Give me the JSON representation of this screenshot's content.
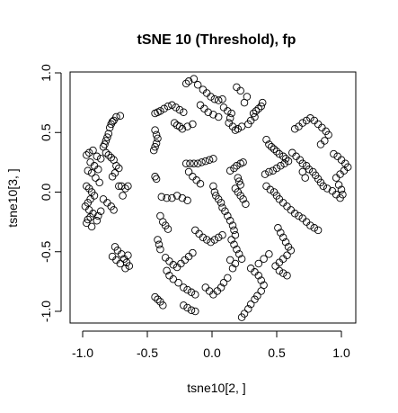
{
  "chart_data": {
    "type": "scatter",
    "title": "tSNE 10 (Threshold), fp",
    "xlabel": "tsne10[2, ]",
    "ylabel": "tsne10[3, ]",
    "xlim": [
      -1.1,
      1.1
    ],
    "ylim": [
      -1.1,
      1.1
    ],
    "xticks": [
      -1.0,
      -0.5,
      0.0,
      0.5,
      1.0
    ],
    "yticks": [
      -1.0,
      -0.5,
      0.0,
      0.5,
      1.0
    ],
    "xtick_labels": [
      "-1.0",
      "-0.5",
      "0.0",
      "0.5",
      "1.0"
    ],
    "ytick_labels": [
      "-1.0",
      "-0.5",
      "0.0",
      "0.5",
      "1.0"
    ],
    "grid": false,
    "marker": "open-circle",
    "marker_color": "#000000",
    "points": [
      [
        -0.97,
        0.31
      ],
      [
        -0.95,
        0.33
      ],
      [
        -0.92,
        0.35
      ],
      [
        -0.89,
        0.3
      ],
      [
        -0.86,
        0.28
      ],
      [
        -0.94,
        0.25
      ],
      [
        -0.91,
        0.22
      ],
      [
        -0.88,
        0.19
      ],
      [
        -0.96,
        0.18
      ],
      [
        -0.93,
        0.16
      ],
      [
        -0.9,
        0.12
      ],
      [
        -0.87,
        0.08
      ],
      [
        -0.84,
        0.38
      ],
      [
        -0.82,
        0.43
      ],
      [
        -0.8,
        0.49
      ],
      [
        -0.79,
        0.54
      ],
      [
        -0.78,
        0.57
      ],
      [
        -0.77,
        0.59
      ],
      [
        -0.76,
        0.6
      ],
      [
        -0.74,
        0.63
      ],
      [
        -0.71,
        0.64
      ],
      [
        -0.81,
        0.46
      ],
      [
        -0.83,
        0.4
      ],
      [
        -0.82,
        0.33
      ],
      [
        -0.8,
        0.31
      ],
      [
        -0.78,
        0.29
      ],
      [
        -0.76,
        0.27
      ],
      [
        -0.74,
        0.22
      ],
      [
        -0.72,
        0.2
      ],
      [
        -0.75,
        0.16
      ],
      [
        -0.77,
        0.13
      ],
      [
        -0.97,
        0.05
      ],
      [
        -0.95,
        0.03
      ],
      [
        -0.93,
        0.0
      ],
      [
        -0.91,
        -0.03
      ],
      [
        -0.94,
        -0.06
      ],
      [
        -0.96,
        -0.09
      ],
      [
        -0.98,
        -0.12
      ],
      [
        -0.95,
        -0.15
      ],
      [
        -0.92,
        -0.18
      ],
      [
        -0.94,
        -0.21
      ],
      [
        -0.96,
        -0.23
      ],
      [
        -0.97,
        -0.26
      ],
      [
        -0.93,
        -0.29
      ],
      [
        -0.89,
        -0.24
      ],
      [
        -0.88,
        -0.2
      ],
      [
        -0.86,
        -0.16
      ],
      [
        -0.84,
        -0.06
      ],
      [
        -0.81,
        -0.09
      ],
      [
        -0.78,
        -0.12
      ],
      [
        -0.76,
        -0.15
      ],
      [
        -0.72,
        0.05
      ],
      [
        -0.7,
        0.05
      ],
      [
        -0.67,
        0.03
      ],
      [
        -0.65,
        0.05
      ],
      [
        -0.69,
        -0.03
      ],
      [
        -0.75,
        -0.46
      ],
      [
        -0.73,
        -0.49
      ],
      [
        -0.7,
        -0.52
      ],
      [
        -0.68,
        -0.56
      ],
      [
        -0.66,
        -0.59
      ],
      [
        -0.64,
        -0.62
      ],
      [
        -0.67,
        -0.64
      ],
      [
        -0.71,
        -0.6
      ],
      [
        -0.74,
        -0.57
      ],
      [
        -0.77,
        -0.54
      ],
      [
        -0.65,
        -0.53
      ],
      [
        -0.44,
        0.66
      ],
      [
        -0.42,
        0.67
      ],
      [
        -0.4,
        0.68
      ],
      [
        -0.37,
        0.7
      ],
      [
        -0.34,
        0.72
      ],
      [
        -0.31,
        0.73
      ],
      [
        -0.28,
        0.71
      ],
      [
        -0.25,
        0.69
      ],
      [
        -0.22,
        0.67
      ],
      [
        -0.44,
        0.52
      ],
      [
        -0.43,
        0.48
      ],
      [
        -0.42,
        0.45
      ],
      [
        -0.43,
        0.41
      ],
      [
        -0.44,
        0.38
      ],
      [
        -0.45,
        0.35
      ],
      [
        -0.29,
        0.58
      ],
      [
        -0.27,
        0.56
      ],
      [
        -0.25,
        0.55
      ],
      [
        -0.23,
        0.53
      ],
      [
        -0.19,
        0.55
      ],
      [
        -0.15,
        0.57
      ],
      [
        -0.2,
        0.91
      ],
      [
        -0.18,
        0.93
      ],
      [
        -0.14,
        0.95
      ],
      [
        -0.11,
        0.9
      ],
      [
        -0.07,
        0.86
      ],
      [
        -0.04,
        0.83
      ],
      [
        -0.01,
        0.8
      ],
      [
        0.02,
        0.78
      ],
      [
        0.05,
        0.77
      ],
      [
        0.08,
        0.78
      ],
      [
        -0.09,
        0.73
      ],
      [
        -0.06,
        0.7
      ],
      [
        -0.03,
        0.67
      ],
      [
        0.01,
        0.65
      ],
      [
        0.05,
        0.63
      ],
      [
        0.09,
        0.71
      ],
      [
        0.12,
        0.68
      ],
      [
        0.15,
        0.66
      ],
      [
        0.14,
        0.62
      ],
      [
        0.13,
        0.58
      ],
      [
        0.16,
        0.55
      ],
      [
        0.18,
        0.52
      ],
      [
        0.2,
        0.53
      ],
      [
        0.23,
        0.55
      ],
      [
        0.25,
        0.75
      ],
      [
        0.27,
        0.8
      ],
      [
        0.22,
        0.85
      ],
      [
        0.19,
        0.88
      ],
      [
        -0.44,
        0.13
      ],
      [
        -0.43,
        0.11
      ],
      [
        -0.39,
        -0.04
      ],
      [
        -0.35,
        -0.05
      ],
      [
        -0.31,
        -0.05
      ],
      [
        -0.27,
        -0.03
      ],
      [
        -0.23,
        -0.05
      ],
      [
        -0.19,
        -0.07
      ],
      [
        -0.4,
        -0.2
      ],
      [
        -0.38,
        -0.25
      ],
      [
        -0.36,
        -0.28
      ],
      [
        -0.34,
        -0.31
      ],
      [
        -0.2,
        0.24
      ],
      [
        -0.17,
        0.24
      ],
      [
        -0.14,
        0.24
      ],
      [
        -0.11,
        0.24
      ],
      [
        -0.08,
        0.25
      ],
      [
        -0.05,
        0.26
      ],
      [
        -0.02,
        0.27
      ],
      [
        0.01,
        0.28
      ],
      [
        -0.18,
        0.17
      ],
      [
        -0.15,
        0.13
      ],
      [
        -0.12,
        0.1
      ],
      [
        -0.09,
        0.07
      ],
      [
        0.01,
        0.05
      ],
      [
        0.02,
        0.0
      ],
      [
        0.03,
        -0.03
      ],
      [
        0.05,
        -0.06
      ],
      [
        0.07,
        -0.09
      ],
      [
        0.08,
        -0.13
      ],
      [
        0.1,
        -0.16
      ],
      [
        0.12,
        -0.2
      ],
      [
        0.14,
        -0.24
      ],
      [
        0.16,
        -0.28
      ],
      [
        0.17,
        -0.32
      ],
      [
        0.18,
        -0.36
      ],
      [
        0.14,
        0.18
      ],
      [
        0.17,
        0.2
      ],
      [
        0.19,
        0.22
      ],
      [
        0.22,
        0.24
      ],
      [
        0.24,
        0.25
      ],
      [
        0.2,
        0.12
      ],
      [
        0.21,
        0.09
      ],
      [
        0.22,
        0.06
      ],
      [
        0.18,
        0.03
      ],
      [
        0.2,
        0.0
      ],
      [
        0.22,
        -0.03
      ],
      [
        0.24,
        -0.06
      ],
      [
        0.26,
        -0.1
      ],
      [
        -0.13,
        -0.32
      ],
      [
        -0.1,
        -0.35
      ],
      [
        -0.07,
        -0.38
      ],
      [
        -0.04,
        -0.4
      ],
      [
        -0.01,
        -0.42
      ],
      [
        0.02,
        -0.4
      ],
      [
        0.05,
        -0.38
      ],
      [
        0.08,
        -0.36
      ],
      [
        -0.42,
        -0.4
      ],
      [
        -0.41,
        -0.44
      ],
      [
        -0.4,
        -0.48
      ],
      [
        -0.36,
        -0.55
      ],
      [
        -0.33,
        -0.58
      ],
      [
        -0.3,
        -0.61
      ],
      [
        -0.27,
        -0.63
      ],
      [
        -0.24,
        -0.6
      ],
      [
        -0.21,
        -0.57
      ],
      [
        -0.18,
        -0.54
      ],
      [
        -0.15,
        -0.51
      ],
      [
        -0.35,
        -0.66
      ],
      [
        -0.33,
        -0.7
      ],
      [
        -0.3,
        -0.73
      ],
      [
        -0.26,
        -0.76
      ],
      [
        -0.22,
        -0.8
      ],
      [
        -0.19,
        -0.82
      ],
      [
        -0.16,
        -0.84
      ],
      [
        -0.13,
        -0.86
      ],
      [
        -0.44,
        -0.88
      ],
      [
        -0.42,
        -0.9
      ],
      [
        -0.4,
        -0.92
      ],
      [
        -0.38,
        -0.95
      ],
      [
        -0.22,
        -0.95
      ],
      [
        -0.19,
        -0.97
      ],
      [
        -0.16,
        -0.99
      ],
      [
        -0.13,
        -1.0
      ],
      [
        -0.05,
        -0.8
      ],
      [
        -0.02,
        -0.83
      ],
      [
        0.01,
        -0.86
      ],
      [
        0.04,
        -0.83
      ],
      [
        0.07,
        -0.8
      ],
      [
        0.09,
        -0.76
      ],
      [
        0.12,
        -0.72
      ],
      [
        0.15,
        -0.4
      ],
      [
        0.17,
        -0.44
      ],
      [
        0.19,
        -0.48
      ],
      [
        0.21,
        -0.52
      ],
      [
        0.23,
        -0.56
      ],
      [
        0.18,
        -0.6
      ],
      [
        0.16,
        -0.64
      ],
      [
        0.14,
        -0.57
      ],
      [
        0.3,
        -0.64
      ],
      [
        0.33,
        -0.67
      ],
      [
        0.36,
        -0.7
      ],
      [
        0.38,
        -0.74
      ],
      [
        0.4,
        -0.78
      ],
      [
        0.38,
        -0.83
      ],
      [
        0.35,
        -0.87
      ],
      [
        0.33,
        -0.9
      ],
      [
        0.3,
        -0.94
      ],
      [
        0.28,
        -0.98
      ],
      [
        0.25,
        -1.02
      ],
      [
        0.23,
        -1.05
      ],
      [
        0.32,
        0.66
      ],
      [
        0.34,
        0.68
      ],
      [
        0.36,
        0.7
      ],
      [
        0.38,
        0.72
      ],
      [
        0.39,
        0.75
      ],
      [
        0.33,
        0.63
      ],
      [
        0.3,
        0.6
      ],
      [
        0.28,
        0.57
      ],
      [
        0.42,
        0.44
      ],
      [
        0.44,
        0.4
      ],
      [
        0.46,
        0.38
      ],
      [
        0.48,
        0.36
      ],
      [
        0.5,
        0.34
      ],
      [
        0.52,
        0.32
      ],
      [
        0.55,
        0.3
      ],
      [
        0.57,
        0.28
      ],
      [
        0.59,
        0.26
      ],
      [
        0.56,
        0.24
      ],
      [
        0.53,
        0.22
      ],
      [
        0.5,
        0.2
      ],
      [
        0.47,
        0.18
      ],
      [
        0.44,
        0.17
      ],
      [
        0.41,
        0.15
      ],
      [
        0.64,
        0.53
      ],
      [
        0.67,
        0.55
      ],
      [
        0.7,
        0.58
      ],
      [
        0.73,
        0.6
      ],
      [
        0.76,
        0.62
      ],
      [
        0.79,
        0.6
      ],
      [
        0.82,
        0.57
      ],
      [
        0.85,
        0.54
      ],
      [
        0.88,
        0.51
      ],
      [
        0.9,
        0.48
      ],
      [
        0.87,
        0.43
      ],
      [
        0.84,
        0.4
      ],
      [
        0.62,
        0.33
      ],
      [
        0.65,
        0.3
      ],
      [
        0.68,
        0.27
      ],
      [
        0.7,
        0.24
      ],
      [
        0.73,
        0.22
      ],
      [
        0.75,
        0.19
      ],
      [
        0.78,
        0.17
      ],
      [
        0.8,
        0.14
      ],
      [
        0.82,
        0.11
      ],
      [
        0.84,
        0.08
      ],
      [
        0.86,
        0.05
      ],
      [
        0.89,
        0.03
      ],
      [
        0.7,
        0.17
      ],
      [
        0.72,
        0.12
      ],
      [
        0.94,
        0.32
      ],
      [
        0.97,
        0.3
      ],
      [
        1.0,
        0.27
      ],
      [
        1.03,
        0.24
      ],
      [
        1.05,
        0.21
      ],
      [
        1.02,
        0.18
      ],
      [
        0.99,
        0.15
      ],
      [
        0.96,
        0.12
      ],
      [
        0.98,
        0.06
      ],
      [
        1.0,
        0.02
      ],
      [
        1.01,
        -0.02
      ],
      [
        0.99,
        -0.05
      ],
      [
        0.96,
        -0.02
      ],
      [
        0.93,
        0.01
      ],
      [
        0.42,
        0.05
      ],
      [
        0.45,
        0.02
      ],
      [
        0.48,
        0.0
      ],
      [
        0.5,
        -0.03
      ],
      [
        0.52,
        -0.06
      ],
      [
        0.55,
        -0.09
      ],
      [
        0.58,
        -0.12
      ],
      [
        0.61,
        -0.15
      ],
      [
        0.64,
        -0.18
      ],
      [
        0.67,
        -0.2
      ],
      [
        0.7,
        -0.22
      ],
      [
        0.73,
        -0.25
      ],
      [
        0.76,
        -0.28
      ],
      [
        0.79,
        -0.3
      ],
      [
        0.82,
        -0.32
      ],
      [
        0.51,
        -0.3
      ],
      [
        0.53,
        -0.34
      ],
      [
        0.55,
        -0.38
      ],
      [
        0.57,
        -0.42
      ],
      [
        0.59,
        -0.46
      ],
      [
        0.61,
        -0.49
      ],
      [
        0.58,
        -0.53
      ],
      [
        0.55,
        -0.56
      ],
      [
        0.52,
        -0.59
      ],
      [
        0.49,
        -0.62
      ],
      [
        0.52,
        -0.66
      ],
      [
        0.55,
        -0.68
      ],
      [
        0.58,
        -0.7
      ],
      [
        0.36,
        -0.6
      ],
      [
        0.4,
        -0.56
      ],
      [
        0.44,
        -0.52
      ]
    ]
  }
}
